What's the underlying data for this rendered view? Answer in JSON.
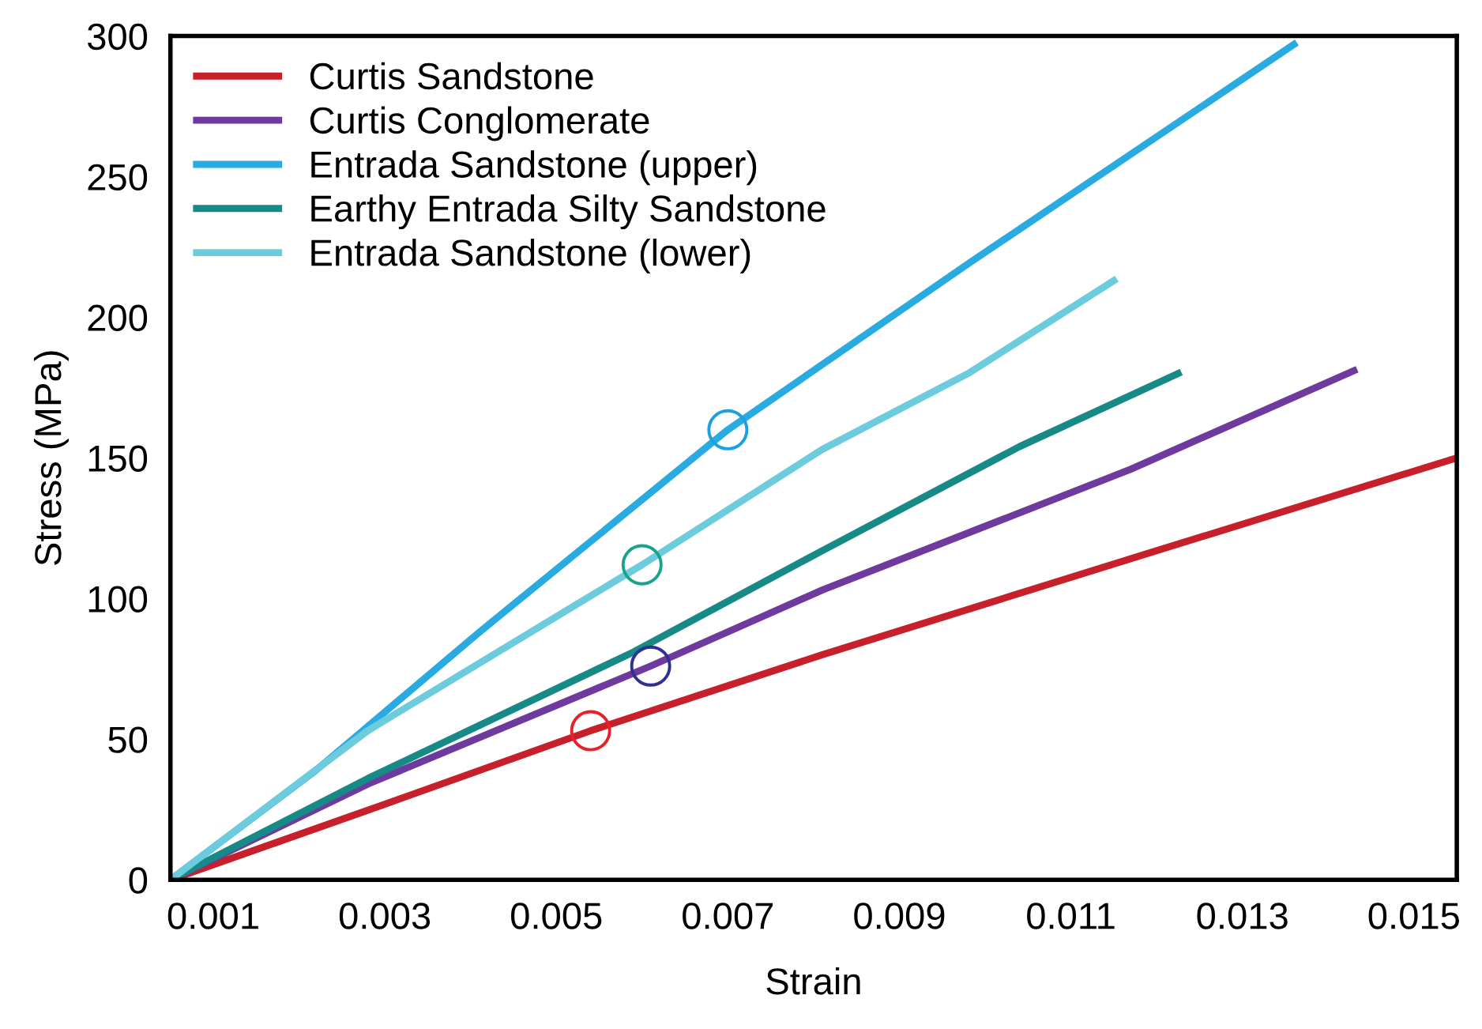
{
  "chart_data": {
    "type": "line",
    "xlabel": "Strain",
    "ylabel": "Stress (MPa)",
    "xlim": [
      0.0005,
      0.0155
    ],
    "xticks": [
      0.001,
      0.003,
      0.005,
      0.007,
      0.009,
      0.011,
      0.013,
      0.015
    ],
    "ylim": [
      0,
      300
    ],
    "yticks": [
      0,
      50,
      100,
      150,
      200,
      250,
      300
    ],
    "grid": false,
    "legend": "top left",
    "marker": "none",
    "line_style": "solid",
    "series": [
      {
        "name": "Curtis Sandstone",
        "color": "#c8202a",
        "x": [
          0.0005,
          0.0028,
          0.0054,
          0.0081,
          0.012,
          0.0155
        ],
        "values": [
          0,
          24.7,
          53,
          80,
          117,
          150
        ]
      },
      {
        "name": "Curtis Conglomerate",
        "color": "#6f3a9e",
        "x": [
          0.0005,
          0.0028,
          0.0061,
          0.0081,
          0.0117,
          0.0143
        ],
        "values": [
          0,
          34,
          76,
          103,
          146,
          181
        ]
      },
      {
        "name": "Entrada Sandstone (upper)",
        "color": "#29abe2",
        "x": [
          0.0005,
          0.0022,
          0.0041,
          0.007,
          0.0098,
          0.0136
        ],
        "values": [
          0,
          39,
          88,
          160,
          219,
          297
        ]
      },
      {
        "name": "Earthy Entrada Silty Sandstone",
        "color": "#178a87",
        "x": [
          0.0005,
          0.0028,
          0.0059,
          0.0081,
          0.0104,
          0.01225
        ],
        "values": [
          0,
          36,
          81,
          117,
          154,
          180
        ]
      },
      {
        "name": "Entrada Sandstone (lower)",
        "color": "#6ccbdc",
        "x": [
          0.0005,
          0.0028,
          0.006,
          0.0081,
          0.0098,
          0.0115
        ],
        "values": [
          0,
          53,
          112,
          153,
          180,
          213
        ]
      },
      {
        "type": "scatter",
        "marker": "circle",
        "x": [
          0.0054,
          0.0061,
          0.006,
          0.007
        ],
        "values": [
          53,
          76,
          112,
          160
        ],
        "colors": [
          "#e8202a",
          "#2e3192",
          "#1aa38c",
          "#1ca0e0"
        ]
      }
    ]
  }
}
